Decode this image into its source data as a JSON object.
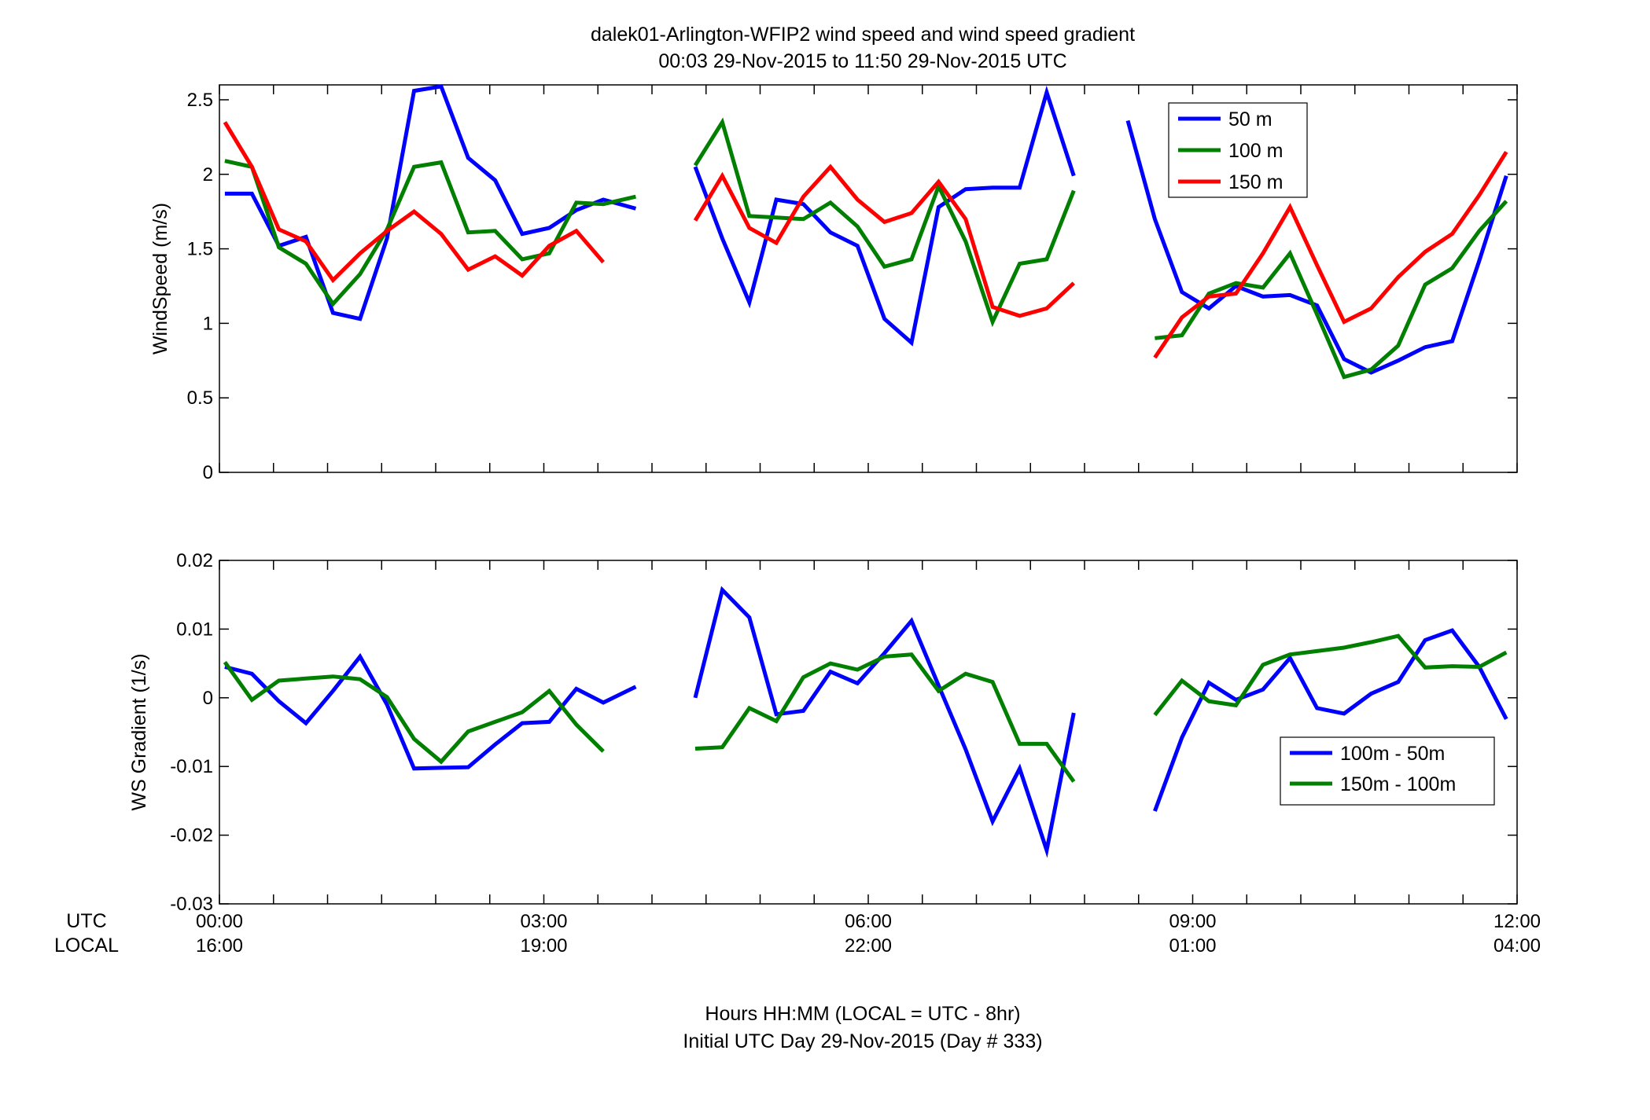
{
  "title": "dalek01-Arlington-WFIP2  wind speed and wind speed gradient",
  "subtitle": "00:03 29-Nov-2015 to 11:50 29-Nov-2015  UTC",
  "xlabel_line1": "Hours HH:MM  (LOCAL = UTC - 8hr)",
  "xlabel_line2": "Initial UTC Day 29-Nov-2015 (Day # 333)",
  "row_label_utc": "UTC",
  "row_label_local": "LOCAL",
  "x_ticks": [
    {
      "hours": 0,
      "utc": "00:00",
      "local": "16:00"
    },
    {
      "hours": 3,
      "utc": "03:00",
      "local": "19:00"
    },
    {
      "hours": 6,
      "utc": "06:00",
      "local": "22:00"
    },
    {
      "hours": 9,
      "utc": "09:00",
      "local": "01:00"
    },
    {
      "hours": 12,
      "utc": "12:00",
      "local": "04:00"
    }
  ],
  "chart_data": [
    {
      "type": "line",
      "ylabel": "WindSpeed (m/s)",
      "xlim_hours": [
        0,
        12
      ],
      "ylim": [
        0,
        2.6
      ],
      "y_ticks": [
        0,
        0.5,
        1,
        1.5,
        2,
        2.5
      ],
      "y_tick_labels": [
        "0",
        "0.5",
        "1",
        "1.5",
        "2",
        "2.5"
      ],
      "grid": false,
      "legend_position": "top-right",
      "series": [
        {
          "name": "50 m",
          "color": "#0000ff",
          "segments": [
            [
              [
                0.05,
                1.87
              ],
              [
                0.3,
                1.87
              ],
              [
                0.55,
                1.52
              ],
              [
                0.8,
                1.58
              ],
              [
                1.05,
                1.07
              ],
              [
                1.3,
                1.03
              ],
              [
                1.55,
                1.57
              ],
              [
                1.8,
                2.56
              ],
              [
                2.05,
                2.59
              ],
              [
                2.3,
                2.11
              ],
              [
                2.55,
                1.96
              ],
              [
                2.8,
                1.6
              ],
              [
                3.05,
                1.64
              ],
              [
                3.3,
                1.76
              ],
              [
                3.55,
                1.83
              ],
              [
                3.85,
                1.77
              ]
            ],
            [
              [
                4.4,
                2.05
              ],
              [
                4.65,
                1.57
              ],
              [
                4.9,
                1.14
              ],
              [
                5.15,
                1.83
              ],
              [
                5.4,
                1.8
              ],
              [
                5.65,
                1.61
              ],
              [
                5.9,
                1.52
              ],
              [
                6.15,
                1.03
              ],
              [
                6.4,
                0.87
              ],
              [
                6.65,
                1.78
              ],
              [
                6.9,
                1.9
              ],
              [
                7.15,
                1.91
              ],
              [
                7.4,
                1.91
              ],
              [
                7.65,
                2.55
              ],
              [
                7.9,
                1.99
              ]
            ],
            [
              [
                8.4,
                2.36
              ],
              [
                8.65,
                1.7
              ],
              [
                8.9,
                1.21
              ],
              [
                9.15,
                1.1
              ],
              [
                9.4,
                1.25
              ],
              [
                9.65,
                1.18
              ],
              [
                9.9,
                1.19
              ],
              [
                10.15,
                1.12
              ],
              [
                10.4,
                0.76
              ],
              [
                10.65,
                0.67
              ],
              [
                10.9,
                0.75
              ],
              [
                11.15,
                0.84
              ],
              [
                11.4,
                0.88
              ],
              [
                11.65,
                1.42
              ],
              [
                11.9,
                1.99
              ]
            ]
          ]
        },
        {
          "name": "100 m",
          "color": "#007f00",
          "segments": [
            [
              [
                0.05,
                2.09
              ],
              [
                0.3,
                2.05
              ],
              [
                0.55,
                1.51
              ],
              [
                0.8,
                1.4
              ],
              [
                1.05,
                1.13
              ],
              [
                1.3,
                1.33
              ],
              [
                1.55,
                1.63
              ],
              [
                1.8,
                2.05
              ],
              [
                2.05,
                2.08
              ],
              [
                2.3,
                1.61
              ],
              [
                2.55,
                1.62
              ],
              [
                2.8,
                1.43
              ],
              [
                3.05,
                1.47
              ],
              [
                3.3,
                1.81
              ],
              [
                3.55,
                1.8
              ],
              [
                3.85,
                1.85
              ]
            ],
            [
              [
                4.4,
                2.06
              ],
              [
                4.65,
                2.35
              ],
              [
                4.9,
                1.72
              ],
              [
                5.15,
                1.71
              ],
              [
                5.4,
                1.7
              ],
              [
                5.65,
                1.81
              ],
              [
                5.9,
                1.65
              ],
              [
                6.15,
                1.38
              ],
              [
                6.4,
                1.43
              ],
              [
                6.65,
                1.92
              ],
              [
                6.9,
                1.55
              ],
              [
                7.15,
                1.01
              ],
              [
                7.4,
                1.4
              ],
              [
                7.65,
                1.43
              ],
              [
                7.9,
                1.89
              ]
            ],
            [
              [
                8.65,
                0.9
              ],
              [
                8.9,
                0.92
              ],
              [
                9.15,
                1.2
              ],
              [
                9.4,
                1.27
              ],
              [
                9.65,
                1.24
              ],
              [
                9.9,
                1.47
              ],
              [
                10.15,
                1.06
              ],
              [
                10.4,
                0.64
              ],
              [
                10.65,
                0.69
              ],
              [
                10.9,
                0.85
              ],
              [
                11.15,
                1.26
              ],
              [
                11.4,
                1.37
              ],
              [
                11.65,
                1.62
              ],
              [
                11.9,
                1.82
              ]
            ]
          ]
        },
        {
          "name": "150 m",
          "color": "#ff0000",
          "segments": [
            [
              [
                0.05,
                2.35
              ],
              [
                0.3,
                2.05
              ],
              [
                0.55,
                1.63
              ],
              [
                0.8,
                1.55
              ],
              [
                1.05,
                1.29
              ],
              [
                1.3,
                1.47
              ],
              [
                1.55,
                1.62
              ],
              [
                1.8,
                1.75
              ],
              [
                2.05,
                1.6
              ],
              [
                2.3,
                1.36
              ],
              [
                2.55,
                1.45
              ],
              [
                2.8,
                1.32
              ],
              [
                3.05,
                1.52
              ],
              [
                3.3,
                1.62
              ],
              [
                3.55,
                1.41
              ]
            ],
            [
              [
                4.4,
                1.69
              ],
              [
                4.65,
                1.99
              ],
              [
                4.9,
                1.64
              ],
              [
                5.15,
                1.54
              ],
              [
                5.4,
                1.85
              ],
              [
                5.65,
                2.05
              ],
              [
                5.9,
                1.83
              ],
              [
                6.15,
                1.68
              ],
              [
                6.4,
                1.74
              ],
              [
                6.65,
                1.95
              ],
              [
                6.9,
                1.7
              ],
              [
                7.15,
                1.11
              ],
              [
                7.4,
                1.05
              ],
              [
                7.65,
                1.1
              ],
              [
                7.9,
                1.27
              ]
            ],
            [
              [
                8.65,
                0.77
              ],
              [
                8.9,
                1.04
              ],
              [
                9.15,
                1.18
              ],
              [
                9.4,
                1.2
              ],
              [
                9.65,
                1.47
              ],
              [
                9.9,
                1.78
              ],
              [
                10.15,
                1.39
              ],
              [
                10.4,
                1.01
              ],
              [
                10.65,
                1.1
              ],
              [
                10.9,
                1.31
              ],
              [
                11.15,
                1.48
              ],
              [
                11.4,
                1.6
              ],
              [
                11.65,
                1.86
              ],
              [
                11.9,
                2.15
              ]
            ]
          ]
        }
      ]
    },
    {
      "type": "line",
      "ylabel": "WS Gradient (1/s)",
      "xlim_hours": [
        0,
        12
      ],
      "ylim": [
        -0.03,
        0.02
      ],
      "y_ticks": [
        -0.03,
        -0.02,
        -0.01,
        0,
        0.01,
        0.02
      ],
      "y_tick_labels": [
        "-0.03",
        "-0.02",
        "-0.01",
        "0",
        "0.01",
        "0.02"
      ],
      "grid": false,
      "legend_position": "bottom-right",
      "series": [
        {
          "name": "100m - 50m",
          "color": "#0000ff",
          "segments": [
            [
              [
                0.05,
                0.0045
              ],
              [
                0.3,
                0.0035
              ],
              [
                0.55,
                -0.0005
              ],
              [
                0.8,
                -0.0037
              ],
              [
                1.05,
                0.001
              ],
              [
                1.3,
                0.006
              ],
              [
                1.55,
                -0.001
              ],
              [
                1.8,
                -0.0103
              ],
              [
                2.05,
                -0.0102
              ],
              [
                2.3,
                -0.0101
              ],
              [
                2.55,
                -0.0068
              ],
              [
                2.8,
                -0.0037
              ],
              [
                3.05,
                -0.0035
              ],
              [
                3.3,
                0.0013
              ],
              [
                3.55,
                -0.0007
              ],
              [
                3.85,
                0.0016
              ]
            ],
            [
              [
                4.4,
                0.0
              ],
              [
                4.65,
                0.0157
              ],
              [
                4.9,
                0.0117
              ],
              [
                5.15,
                -0.0024
              ],
              [
                5.4,
                -0.0019
              ],
              [
                5.65,
                0.0038
              ],
              [
                5.9,
                0.0021
              ],
              [
                6.15,
                0.0065
              ],
              [
                6.4,
                0.0112
              ],
              [
                6.65,
                0.0018
              ],
              [
                6.9,
                -0.0075
              ],
              [
                7.15,
                -0.018
              ],
              [
                7.4,
                -0.0103
              ],
              [
                7.65,
                -0.0222
              ],
              [
                7.9,
                -0.0022
              ]
            ],
            [
              [
                8.65,
                -0.0165
              ],
              [
                8.9,
                -0.0058
              ],
              [
                9.15,
                0.0022
              ],
              [
                9.4,
                -0.0003
              ],
              [
                9.65,
                0.0012
              ],
              [
                9.9,
                0.0058
              ],
              [
                10.15,
                -0.0015
              ],
              [
                10.4,
                -0.0023
              ],
              [
                10.65,
                0.0006
              ],
              [
                10.9,
                0.0023
              ],
              [
                11.15,
                0.0084
              ],
              [
                11.4,
                0.0098
              ],
              [
                11.65,
                0.0045
              ],
              [
                11.9,
                -0.0031
              ]
            ]
          ]
        },
        {
          "name": "150m - 100m",
          "color": "#007f00",
          "segments": [
            [
              [
                0.05,
                0.0052
              ],
              [
                0.3,
                -0.0003
              ],
              [
                0.55,
                0.0025
              ],
              [
                0.8,
                0.0028
              ],
              [
                1.05,
                0.0031
              ],
              [
                1.3,
                0.0027
              ],
              [
                1.55,
                0.0001
              ],
              [
                1.8,
                -0.006
              ],
              [
                2.05,
                -0.0093
              ],
              [
                2.3,
                -0.0049
              ],
              [
                2.55,
                -0.0035
              ],
              [
                2.8,
                -0.0021
              ],
              [
                3.05,
                0.001
              ],
              [
                3.3,
                -0.0039
              ],
              [
                3.55,
                -0.0078
              ]
            ],
            [
              [
                4.4,
                -0.0074
              ],
              [
                4.65,
                -0.0072
              ],
              [
                4.9,
                -0.0015
              ],
              [
                5.15,
                -0.0034
              ],
              [
                5.4,
                0.003
              ],
              [
                5.65,
                0.005
              ],
              [
                5.9,
                0.0041
              ],
              [
                6.15,
                0.006
              ],
              [
                6.4,
                0.0063
              ],
              [
                6.65,
                0.001
              ],
              [
                6.9,
                0.0035
              ],
              [
                7.15,
                0.0023
              ],
              [
                7.4,
                -0.0067
              ],
              [
                7.65,
                -0.0067
              ],
              [
                7.9,
                -0.0122
              ]
            ],
            [
              [
                8.65,
                -0.0025
              ],
              [
                8.9,
                0.0025
              ],
              [
                9.15,
                -0.0005
              ],
              [
                9.4,
                -0.0011
              ],
              [
                9.65,
                0.0048
              ],
              [
                9.9,
                0.0063
              ],
              [
                10.15,
                0.0068
              ],
              [
                10.4,
                0.0073
              ],
              [
                10.65,
                0.0081
              ],
              [
                10.9,
                0.009
              ],
              [
                11.15,
                0.0044
              ],
              [
                11.4,
                0.0046
              ],
              [
                11.65,
                0.0045
              ],
              [
                11.9,
                0.0066
              ]
            ]
          ]
        }
      ]
    }
  ]
}
